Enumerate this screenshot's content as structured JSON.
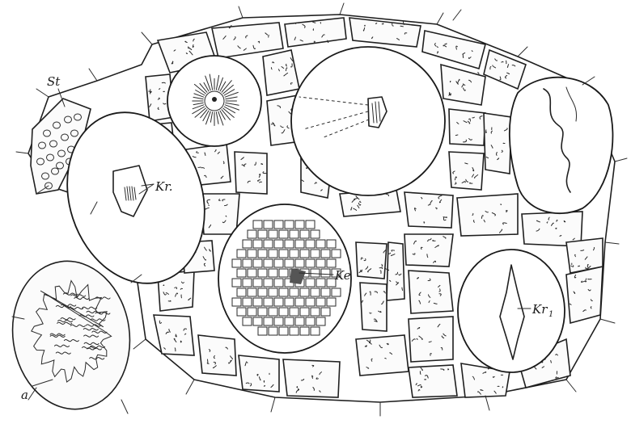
{
  "labels": {
    "st": "St",
    "kr": "Kr.",
    "ke": "Ke",
    "kr1_main": "Kr",
    "kr1_sub": "1",
    "a": "a"
  }
}
